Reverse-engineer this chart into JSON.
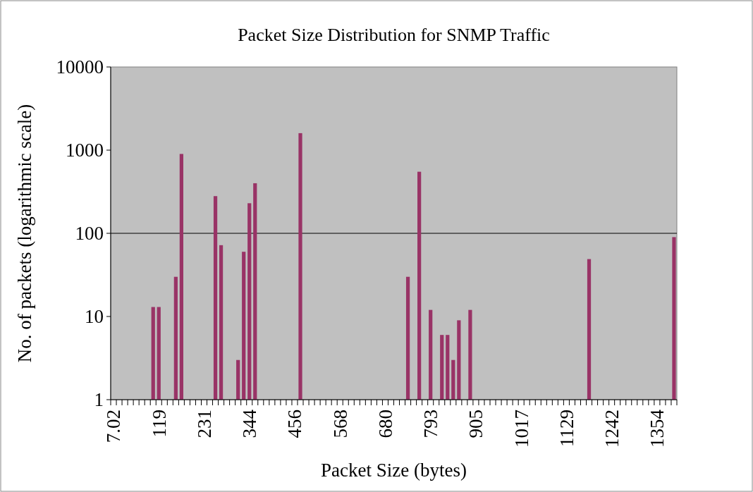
{
  "chart_data": {
    "type": "bar",
    "title": "Packet Size Distribution for SNMP Traffic",
    "xlabel": "Packet Size (bytes)",
    "ylabel": "No. of packets (logarithmic scale)",
    "categories": [
      "7.02",
      null,
      null,
      null,
      null,
      null,
      null,
      null,
      "119",
      null,
      null,
      null,
      null,
      null,
      null,
      null,
      "231",
      null,
      null,
      null,
      null,
      null,
      null,
      null,
      "344",
      null,
      null,
      null,
      null,
      null,
      null,
      null,
      "456",
      null,
      null,
      null,
      null,
      null,
      null,
      null,
      "568",
      null,
      null,
      null,
      null,
      null,
      null,
      null,
      "680",
      null,
      null,
      null,
      null,
      null,
      null,
      null,
      "793",
      null,
      null,
      null,
      null,
      null,
      null,
      null,
      "905",
      null,
      null,
      null,
      null,
      null,
      null,
      null,
      "1017",
      null,
      null,
      null,
      null,
      null,
      null,
      null,
      "1129",
      null,
      null,
      null,
      null,
      null,
      null,
      null,
      "1242",
      null,
      null,
      null,
      null,
      null,
      null,
      null,
      "1354",
      null,
      null,
      null
    ],
    "values": [
      null,
      null,
      null,
      null,
      null,
      null,
      null,
      13,
      13,
      null,
      null,
      30,
      900,
      null,
      null,
      null,
      null,
      null,
      280,
      72,
      null,
      null,
      3,
      60,
      230,
      400,
      null,
      null,
      null,
      null,
      null,
      null,
      null,
      1600,
      null,
      null,
      null,
      null,
      null,
      null,
      null,
      null,
      null,
      null,
      null,
      null,
      null,
      null,
      null,
      null,
      null,
      null,
      30,
      null,
      550,
      null,
      12,
      null,
      6,
      6,
      3,
      9,
      null,
      12,
      null,
      null,
      null,
      null,
      null,
      null,
      null,
      null,
      null,
      null,
      null,
      null,
      null,
      null,
      null,
      null,
      null,
      null,
      null,
      null,
      49,
      null,
      null,
      null,
      null,
      null,
      null,
      null,
      null,
      null,
      null,
      null,
      null,
      null,
      null,
      90
    ],
    "color": "#993366",
    "log": true,
    "ylim": [
      1,
      10000
    ],
    "yticks": [
      1,
      10,
      100,
      1000,
      10000
    ],
    "grid": false,
    "ref_lines": [
      {
        "axis": "y",
        "value": 100,
        "color": "#000000"
      }
    ]
  }
}
